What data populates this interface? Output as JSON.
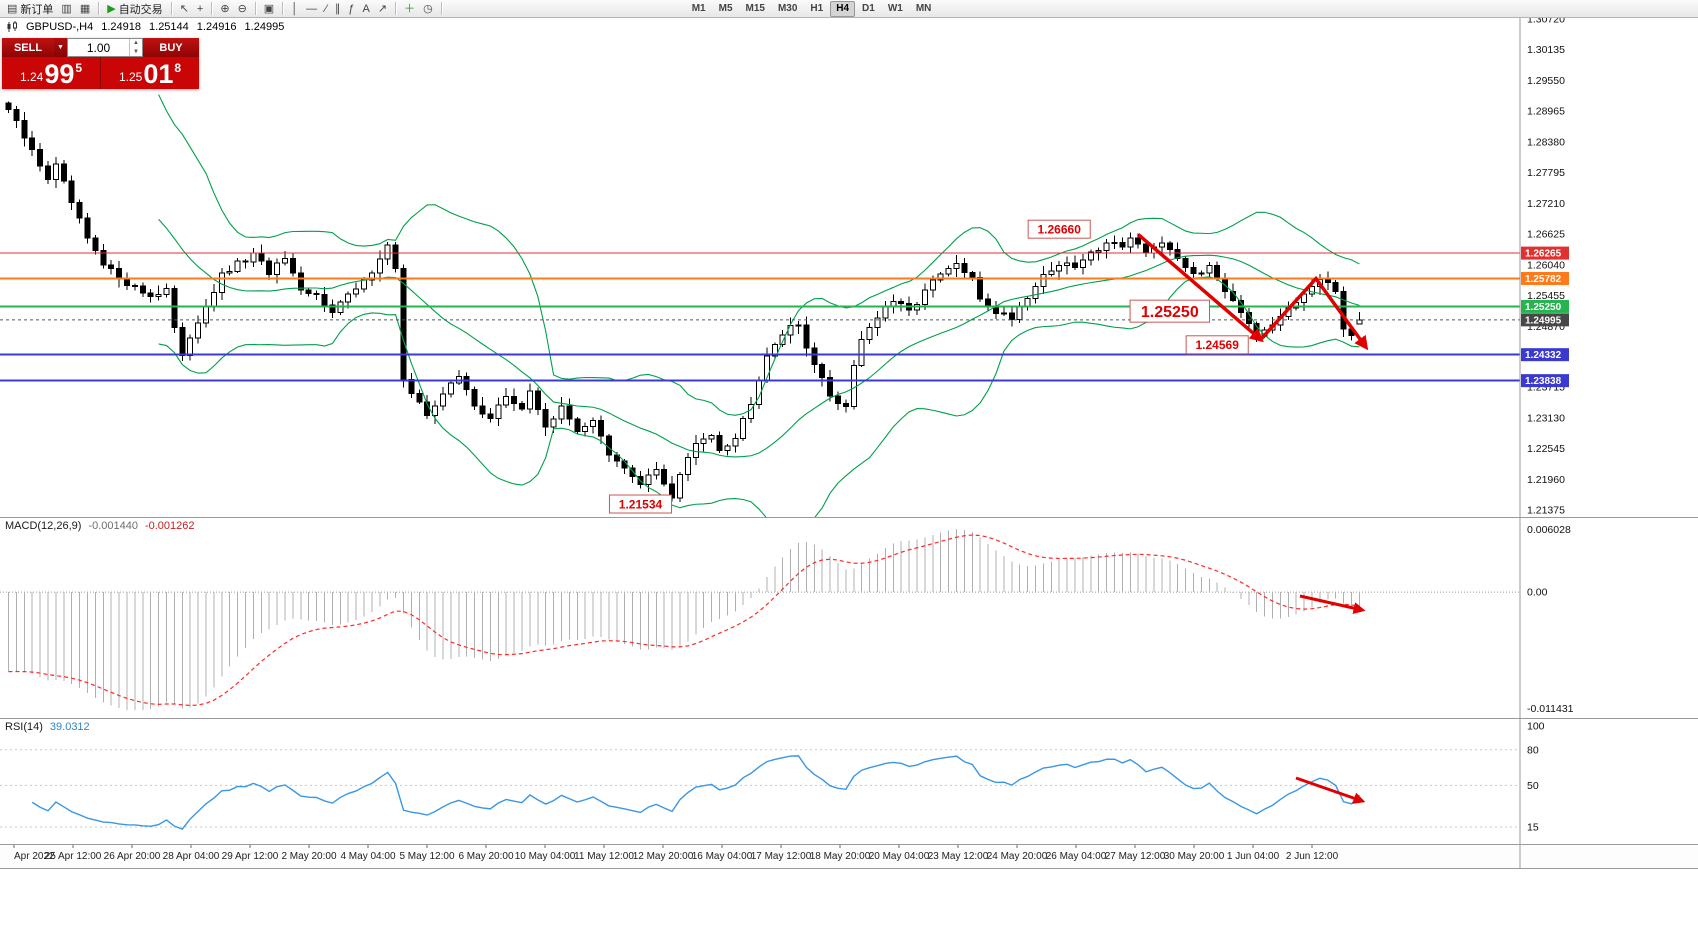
{
  "toolbar": {
    "items": [
      {
        "icon": "▤",
        "label": "新订单",
        "name": "new-order-button"
      },
      {
        "icon": "▥",
        "name": "profiles-button"
      },
      {
        "icon": "▦",
        "name": "market-watch-button"
      },
      {
        "sep": true
      },
      {
        "icon": "▶",
        "label": "自动交易",
        "name": "autotrading-button",
        "icon_color": "#1f9d1f"
      },
      {
        "sep": true
      },
      {
        "icon": "↖",
        "name": "cursor-button"
      },
      {
        "icon": "+",
        "name": "crosshair-button"
      },
      {
        "sep": true
      },
      {
        "icon": "⊕",
        "name": "zoom-in-button"
      },
      {
        "icon": "⊖",
        "name": "zoom-out-button"
      },
      {
        "sep": true
      },
      {
        "icon": "▣",
        "name": "tile-windows-button"
      },
      {
        "sep": true
      },
      {
        "icon": "│",
        "name": "vertical-line-button"
      },
      {
        "icon": "―",
        "name": "horizontal-line-button"
      },
      {
        "icon": "∕",
        "name": "trendline-button"
      },
      {
        "icon": "∥",
        "name": "channel-button"
      },
      {
        "icon": "ƒ",
        "name": "fibonacci-button"
      },
      {
        "icon": "A",
        "name": "text-label-button"
      },
      {
        "icon": "↗",
        "name": "arrow-tool-button"
      },
      {
        "sep": true
      },
      {
        "icon": "＋",
        "name": "indicators-button",
        "icon_color": "#1f9d1f"
      },
      {
        "icon": "◷",
        "name": "periods-button"
      },
      {
        "sep": true
      }
    ],
    "timeframes": [
      "M1",
      "M5",
      "M15",
      "M30",
      "H1",
      "H4",
      "D1",
      "W1",
      "MN"
    ],
    "active_timeframe": "H4"
  },
  "chart_header": {
    "symbol_period": "GBPUSD-,H4",
    "open": "1.24918",
    "high": "1.25144",
    "low": "1.24916",
    "close": "1.24995"
  },
  "trade_widget": {
    "sell_label": "SELL",
    "buy_label": "BUY",
    "lot": "1.00",
    "sell_price": {
      "prefix": "1.24",
      "big": "99",
      "sup": "5"
    },
    "buy_price": {
      "prefix": "1.25",
      "big": "01",
      "sup": "8"
    },
    "panel_color": "#c90505",
    "button_color": "#a80404"
  },
  "chart_data": {
    "type": "candlestick",
    "symbol": "GBPUSD",
    "timeframe": "H4",
    "price_range": [
      1.21243,
      1.30739
    ],
    "y_ticks": [
      "1.30720",
      "1.30135",
      "1.29550",
      "1.28965",
      "1.28380",
      "1.27795",
      "1.27210",
      "1.26625",
      "1.26040",
      "1.25455",
      "1.24870",
      "1.23715",
      "1.23130",
      "1.22545",
      "1.21960",
      "1.21375"
    ],
    "n_candles": 172,
    "price_anchors": [
      [
        0,
        1.29
      ],
      [
        1,
        1.2872
      ],
      [
        3,
        1.282
      ],
      [
        5,
        1.277
      ],
      [
        6,
        1.2792
      ],
      [
        8,
        1.2722
      ],
      [
        10,
        1.2652
      ],
      [
        12,
        1.2602
      ],
      [
        14,
        1.2582
      ],
      [
        16,
        1.256
      ],
      [
        18,
        1.2545
      ],
      [
        20,
        1.256
      ],
      [
        21,
        1.2482
      ],
      [
        22,
        1.2425
      ],
      [
        23,
        1.2468
      ],
      [
        25,
        1.2528
      ],
      [
        27,
        1.2582
      ],
      [
        29,
        1.2605
      ],
      [
        31,
        1.2622
      ],
      [
        33,
        1.259
      ],
      [
        35,
        1.2615
      ],
      [
        37,
        1.255
      ],
      [
        39,
        1.2545
      ],
      [
        41,
        1.252
      ],
      [
        43,
        1.2545
      ],
      [
        45,
        1.257
      ],
      [
        47,
        1.262
      ],
      [
        48,
        1.264
      ],
      [
        49,
        1.26
      ],
      [
        50,
        1.2385
      ],
      [
        51,
        1.2355
      ],
      [
        53,
        1.232
      ],
      [
        55,
        1.236
      ],
      [
        57,
        1.239
      ],
      [
        59,
        1.234
      ],
      [
        61,
        1.231
      ],
      [
        63,
        1.2355
      ],
      [
        65,
        1.233
      ],
      [
        66,
        1.236
      ],
      [
        68,
        1.23
      ],
      [
        70,
        1.233
      ],
      [
        72,
        1.229
      ],
      [
        74,
        1.231
      ],
      [
        76,
        1.224
      ],
      [
        78,
        1.2215
      ],
      [
        80,
        1.219
      ],
      [
        82,
        1.2215
      ],
      [
        84,
        1.216
      ],
      [
        85,
        1.2205
      ],
      [
        87,
        1.2262
      ],
      [
        89,
        1.2285
      ],
      [
        90,
        1.2255
      ],
      [
        92,
        1.2275
      ],
      [
        94,
        1.2345
      ],
      [
        96,
        1.2435
      ],
      [
        98,
        1.2475
      ],
      [
        100,
        1.249
      ],
      [
        102,
        1.2415
      ],
      [
        104,
        1.2355
      ],
      [
        106,
        1.2335
      ],
      [
        107,
        1.2415
      ],
      [
        108,
        1.2465
      ],
      [
        110,
        1.2505
      ],
      [
        112,
        1.2535
      ],
      [
        114,
        1.2515
      ],
      [
        116,
        1.2555
      ],
      [
        118,
        1.2585
      ],
      [
        120,
        1.2605
      ],
      [
        122,
        1.2575
      ],
      [
        123,
        1.254
      ],
      [
        125,
        1.2515
      ],
      [
        127,
        1.2505
      ],
      [
        129,
        1.2545
      ],
      [
        131,
        1.2585
      ],
      [
        133,
        1.2605
      ],
      [
        135,
        1.26
      ],
      [
        137,
        1.2625
      ],
      [
        139,
        1.265
      ],
      [
        141,
        1.2638
      ],
      [
        142,
        1.2655
      ],
      [
        144,
        1.2632
      ],
      [
        146,
        1.2645
      ],
      [
        148,
        1.261
      ],
      [
        150,
        1.2588
      ],
      [
        152,
        1.2598
      ],
      [
        154,
        1.2558
      ],
      [
        156,
        1.2518
      ],
      [
        158,
        1.2468
      ],
      [
        160,
        1.2492
      ],
      [
        161,
        1.2512
      ],
      [
        163,
        1.2538
      ],
      [
        165,
        1.2568
      ],
      [
        167,
        1.2572
      ],
      [
        168,
        1.2558
      ],
      [
        169,
        1.2482
      ],
      [
        170,
        1.247
      ],
      [
        171,
        1.24995
      ]
    ],
    "forced_candles": [
      {
        "i": 84,
        "l": 1.21534
      },
      {
        "i": 142,
        "h": 1.2666
      },
      {
        "i": 158,
        "l": 1.24569
      },
      {
        "i": 171,
        "o": 1.24918,
        "h": 1.25144,
        "l": 1.24916,
        "c": 1.24995
      }
    ],
    "candle_colors": {
      "up_fill": "#ffffff",
      "down_fill": "#000000",
      "outline": "#000000"
    },
    "bollinger": {
      "period": 20,
      "deviation": 2,
      "color": "#00a04a"
    },
    "horizontal_lines": [
      {
        "price": 1.26265,
        "label": "1.26265",
        "color": "#e03030",
        "width": 1
      },
      {
        "price": 1.25782,
        "label": "1.25782",
        "color": "#ff7a1a",
        "width": 2
      },
      {
        "price": 1.2525,
        "label": "1.25250",
        "color": "#27b34f",
        "width": 2
      },
      {
        "price": 1.24332,
        "label": "1.24332",
        "color": "#3a3ad0",
        "width": 2
      },
      {
        "price": 1.23838,
        "label": "1.23838",
        "color": "#3a3ad0",
        "width": 2
      }
    ],
    "current_price": {
      "value": 1.24995,
      "label": "1.24995",
      "tag_color": "#474747"
    },
    "price_labels": [
      {
        "text": "1.26660",
        "i": 133,
        "price": 1.2672,
        "size": 12
      },
      {
        "text": "1.25250",
        "i": 147,
        "price": 1.2516,
        "size": 16
      },
      {
        "text": "1.24569",
        "i": 153,
        "price": 1.2452,
        "size": 12
      },
      {
        "text": "1.21534",
        "i": 80,
        "price": 1.2149,
        "size": 12
      }
    ],
    "trend_arrows": [
      {
        "points": [
          [
            143,
            1.2662
          ],
          [
            158.5,
            1.2462
          ]
        ]
      },
      {
        "points": [
          [
            158.5,
            1.2462
          ],
          [
            165.5,
            1.2578
          ],
          [
            171.8,
            1.2448
          ]
        ]
      }
    ],
    "annotation_color": "#e00000"
  },
  "macd": {
    "label": "MACD(12,26,9)",
    "value_main": "-0.001440",
    "value_signal": "-0.001262",
    "axis_labels": {
      "max": "0.006028",
      "zero": "0.00",
      "min": "-0.011431"
    },
    "fast": 12,
    "slow": 26,
    "signal": 9,
    "histogram_color": "#b0b0b0",
    "signal_color": "#ff2a2a",
    "seed_fast_offset": 0.005,
    "seed_slow_offset": 0.013,
    "arrow": [
      [
        1300,
        79
      ],
      [
        1362,
        93
      ]
    ]
  },
  "rsi": {
    "label": "RSI(14)",
    "value": "39.0312",
    "period": 14,
    "levels": [
      100,
      80,
      50,
      15
    ],
    "line_color": "#3b97e3",
    "arrow": [
      [
        1296,
        60
      ],
      [
        1362,
        83
      ]
    ]
  },
  "time_axis": {
    "labels": [
      "Apr 2022",
      "25 Apr 12:00",
      "26 Apr 20:00",
      "28 Apr 04:00",
      "29 Apr 12:00",
      "2 May 20:00",
      "4 May 04:00",
      "5 May 12:00",
      "6 May 20:00",
      "10 May 04:00",
      "11 May 12:00",
      "12 May 20:00",
      "16 May 04:00",
      "17 May 12:00",
      "18 May 20:00",
      "20 May 04:00",
      "23 May 12:00",
      "24 May 20:00",
      "26 May 04:00",
      "27 May 12:00",
      "30 May 20:00",
      "1 Jun 04:00",
      "2 Jun 12:00"
    ]
  }
}
